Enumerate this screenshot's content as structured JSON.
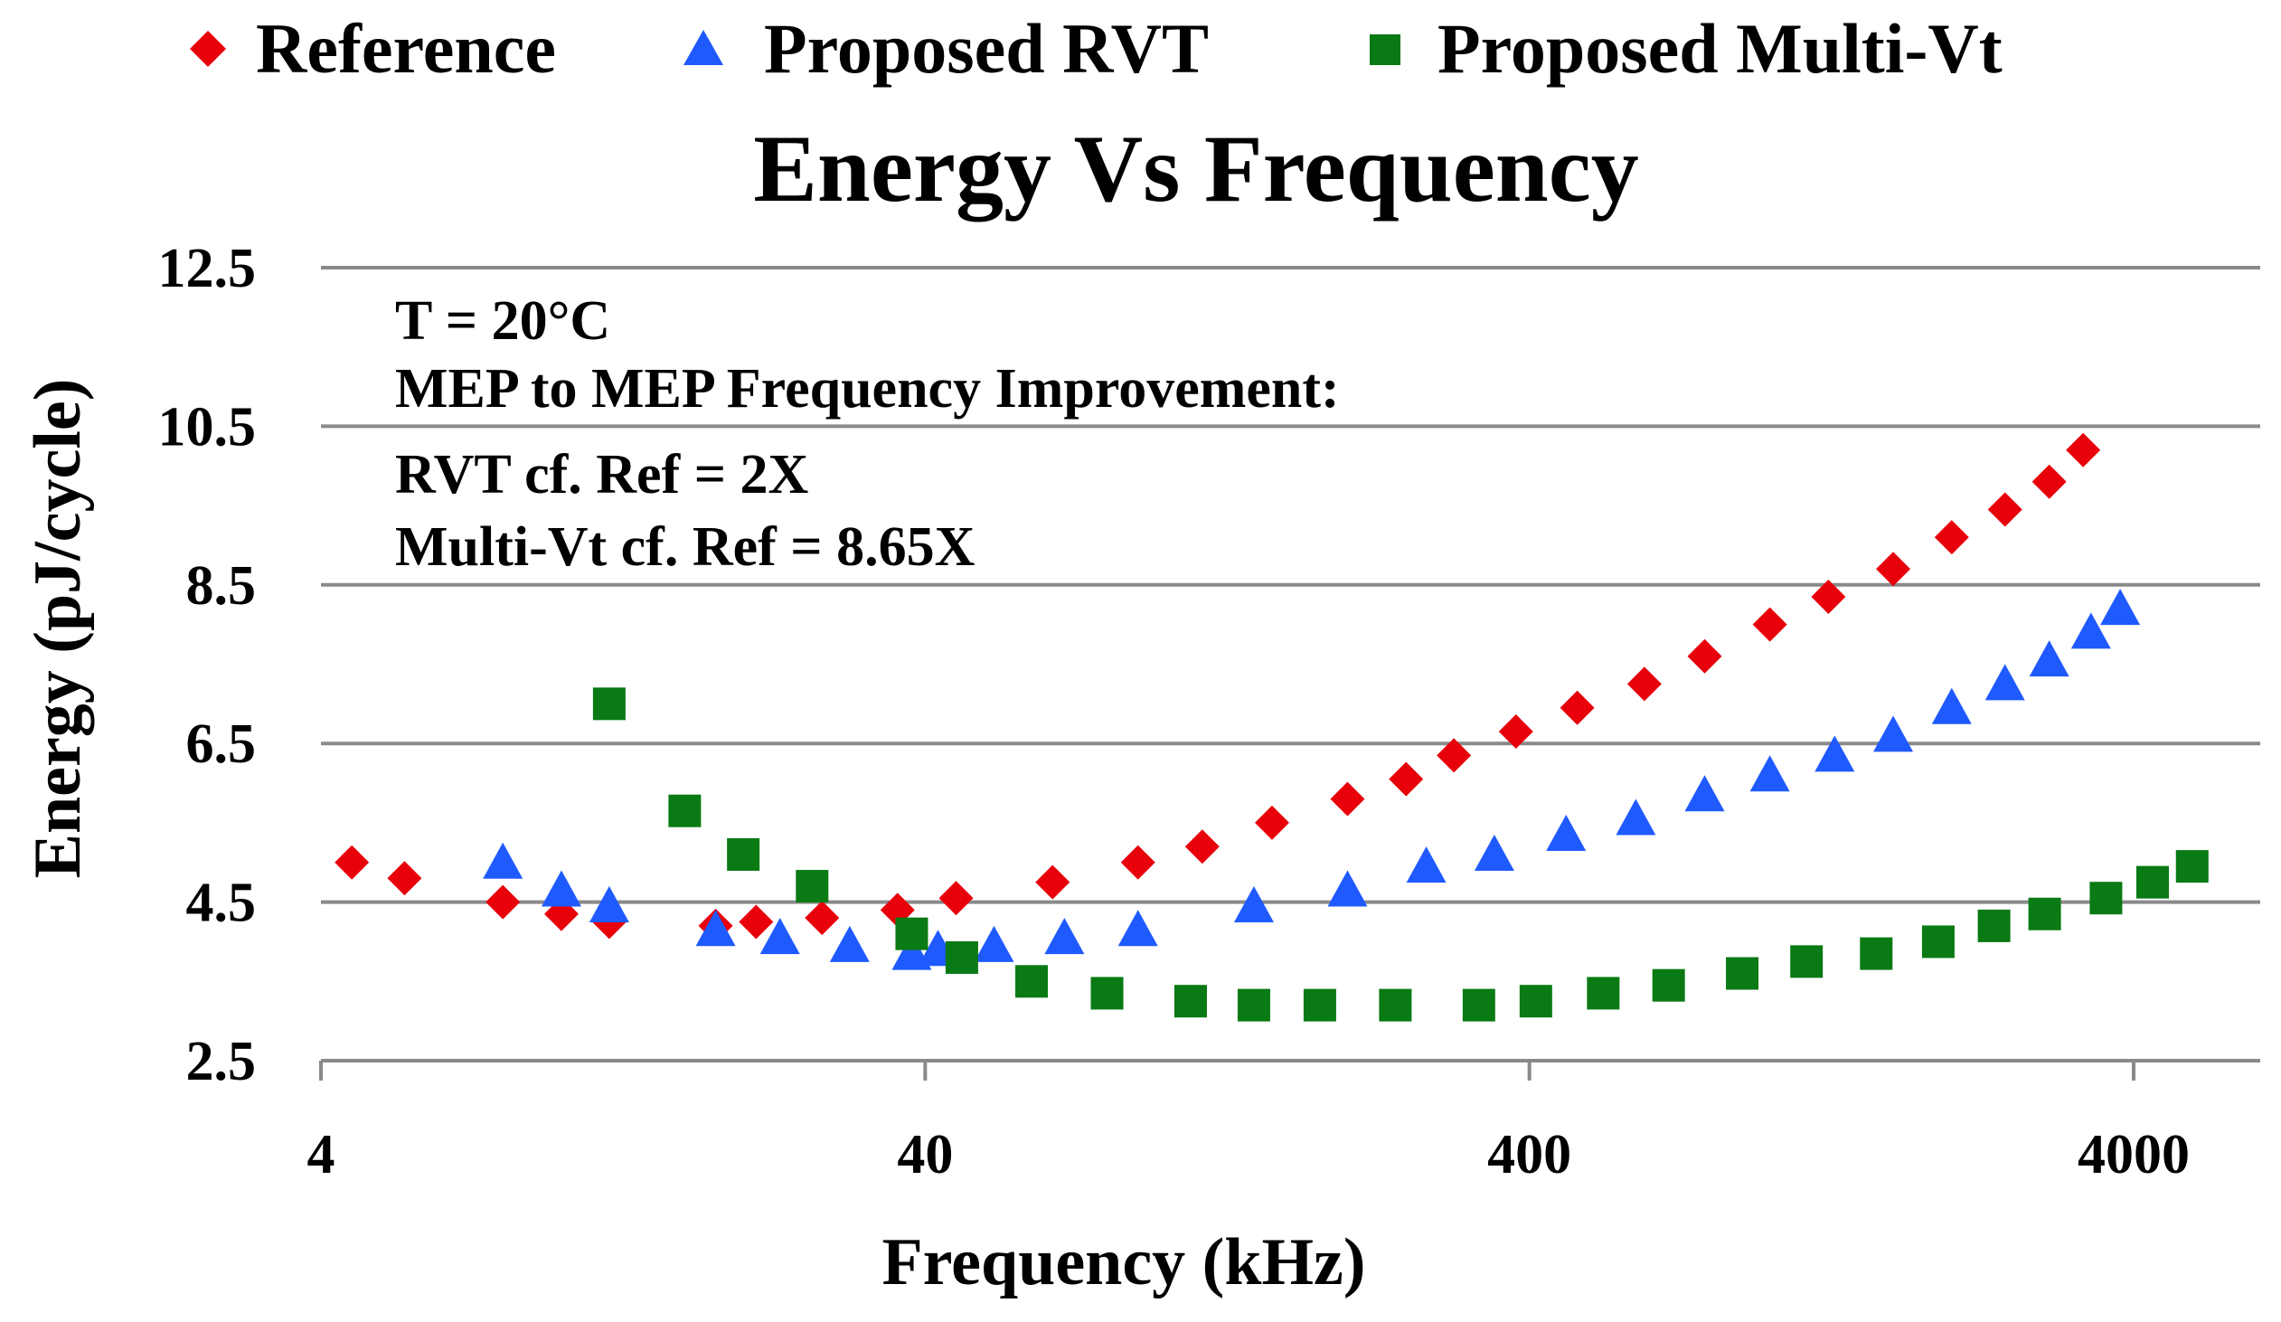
{
  "chart_data": {
    "type": "scatter",
    "title": "Energy Vs Frequency",
    "xlabel": "Frequency (kHz)",
    "ylabel": "Energy (pJ/cycle)",
    "xscale": "log",
    "xlim": [
      4,
      5000
    ],
    "ylim": [
      2.5,
      12.5
    ],
    "xticks": [
      4,
      40,
      400,
      4000
    ],
    "xtick_labels": [
      "4",
      "40",
      "400",
      "4000"
    ],
    "yticks": [
      2.5,
      4.5,
      6.5,
      8.5,
      10.5,
      12.5
    ],
    "ytick_labels": [
      "2.5",
      "4.5",
      "6.5",
      "8.5",
      "10.5",
      "12.5"
    ],
    "grid": true,
    "legend_position": "top",
    "annotations": [
      "T = 20°C",
      "MEP to MEP Frequency Improvement:",
      "RVT cf. Ref = 2X",
      "Multi-Vt cf. Ref = 8.65X"
    ],
    "series": [
      {
        "name": "Reference",
        "marker": "diamond",
        "color": "#e8000b",
        "x": [
          4.5,
          5.5,
          8,
          10,
          12,
          18,
          21,
          27,
          36,
          45,
          65,
          90,
          115,
          150,
          200,
          250,
          300,
          380,
          480,
          620,
          780,
          1000,
          1250,
          1600,
          2000,
          2450,
          2900,
          3300
        ],
        "y": [
          5.0,
          4.8,
          4.5,
          4.35,
          4.25,
          4.2,
          4.25,
          4.3,
          4.4,
          4.55,
          4.75,
          5.0,
          5.2,
          5.5,
          5.8,
          6.05,
          6.35,
          6.65,
          6.95,
          7.25,
          7.6,
          8.0,
          8.35,
          8.7,
          9.1,
          9.45,
          9.8,
          10.2
        ]
      },
      {
        "name": "Proposed RVT",
        "marker": "triangle",
        "color": "#1f5aff",
        "x": [
          8,
          10,
          12,
          18,
          23,
          30,
          38,
          42,
          52,
          68,
          90,
          140,
          200,
          270,
          350,
          460,
          600,
          780,
          1000,
          1280,
          1600,
          2000,
          2450,
          2900,
          3400,
          3800
        ],
        "y": [
          5.0,
          4.65,
          4.45,
          4.15,
          4.05,
          3.95,
          3.85,
          3.9,
          3.95,
          4.05,
          4.15,
          4.45,
          4.65,
          4.95,
          5.1,
          5.35,
          5.55,
          5.85,
          6.1,
          6.35,
          6.6,
          6.95,
          7.25,
          7.55,
          7.9,
          8.2
        ]
      },
      {
        "name": "Proposed Multi-Vt",
        "marker": "square",
        "color": "#0a7a14",
        "x": [
          12,
          16,
          20,
          26,
          38,
          46,
          60,
          80,
          110,
          140,
          180,
          240,
          330,
          410,
          530,
          680,
          900,
          1150,
          1500,
          1900,
          2350,
          2850,
          3600,
          4300,
          5000
        ],
        "y": [
          7.0,
          5.65,
          5.1,
          4.7,
          4.1,
          3.8,
          3.5,
          3.35,
          3.25,
          3.2,
          3.2,
          3.2,
          3.2,
          3.25,
          3.35,
          3.45,
          3.6,
          3.75,
          3.85,
          4.0,
          4.2,
          4.35,
          4.55,
          4.75,
          4.95
        ]
      }
    ]
  }
}
